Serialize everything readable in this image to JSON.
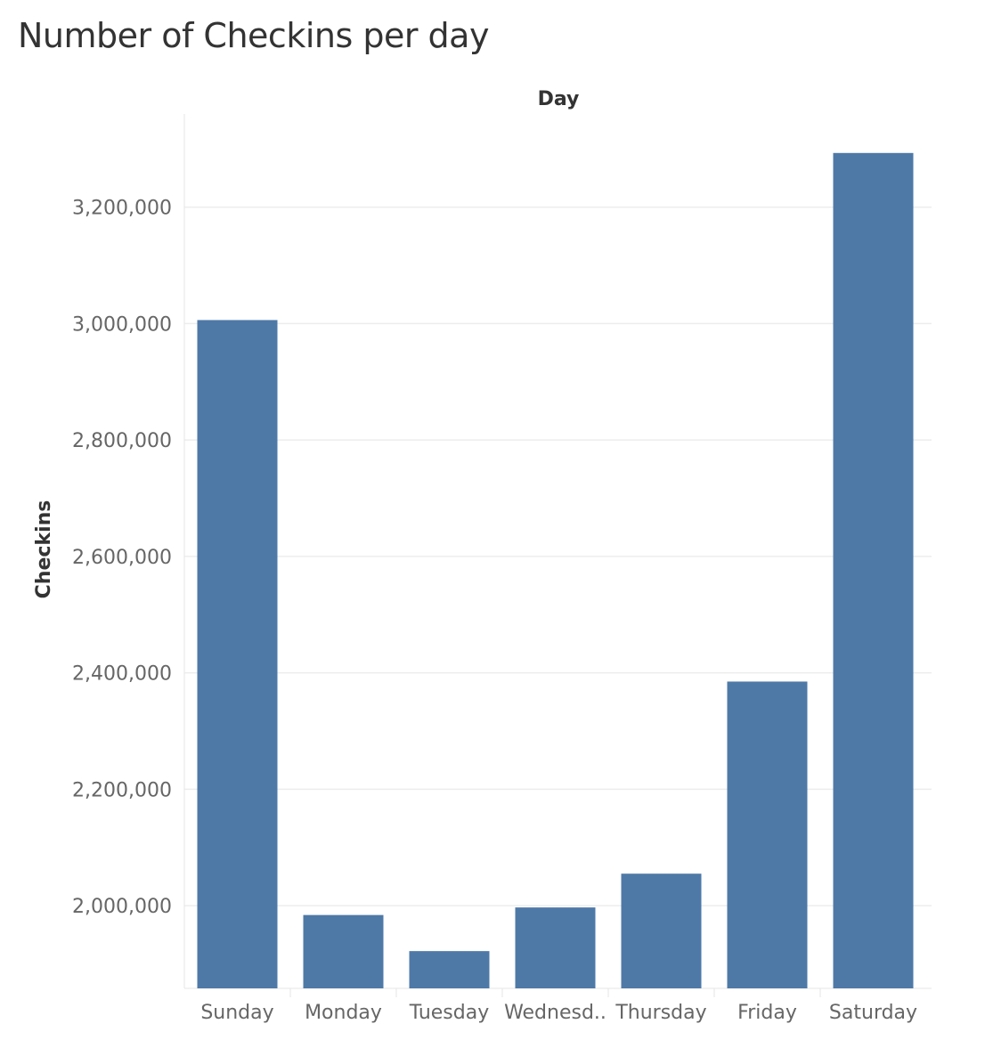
{
  "chart_data": {
    "type": "bar",
    "title": "Number of Checkins per day",
    "xlabel": "Day",
    "ylabel": "Checkins",
    "categories": [
      "Sunday",
      "Monday",
      "Tuesday",
      "Wednesd..",
      "Thursday",
      "Friday",
      "Saturday"
    ],
    "values": [
      3006000,
      1984000,
      1922000,
      1997000,
      2055000,
      2385000,
      3293000
    ],
    "yticks": [
      2000000,
      2200000,
      2400000,
      2600000,
      2800000,
      3000000,
      3200000
    ],
    "ytick_labels": [
      "2,000,000",
      "2,200,000",
      "2,400,000",
      "2,600,000",
      "2,800,000",
      "3,000,000",
      "3,200,000"
    ],
    "ylim": [
      1858000,
      3360000
    ],
    "grid": true,
    "bar_color": "#4e79a7",
    "x_axis_title_position": "top"
  }
}
